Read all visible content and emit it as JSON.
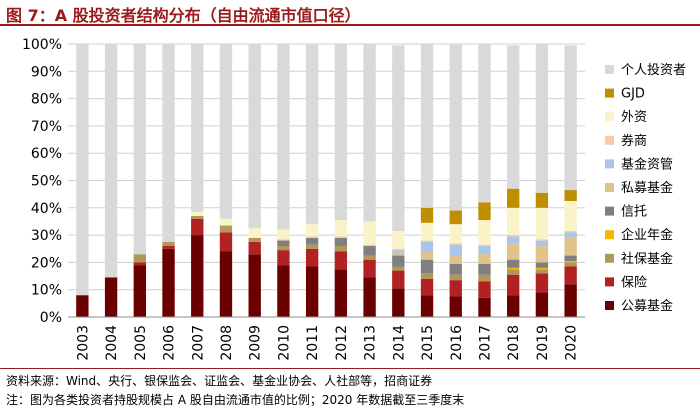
{
  "header": {
    "title": "图 7：A 股投资者结构分布（自由流通市值口径）"
  },
  "footer": {
    "source": "资料来源：Wind、央行、银保监会、证监会、基金业协会、人社部等，招商证券",
    "note": "注：图为各类投资者持股规模占 A 股自由流通市值的比例；2020 年数据截至三季度末"
  },
  "chart_data": {
    "type": "bar",
    "stacked": true,
    "title": "",
    "xlabel": "",
    "ylabel": "",
    "ylim": [
      0,
      100
    ],
    "yticks": [
      "0%",
      "10%",
      "20%",
      "30%",
      "40%",
      "50%",
      "60%",
      "70%",
      "80%",
      "90%",
      "100%"
    ],
    "categories": [
      "2003",
      "2004",
      "2005",
      "2006",
      "2007",
      "2008",
      "2009",
      "2010",
      "2011",
      "2012",
      "2013",
      "2014",
      "2015",
      "2016",
      "2017",
      "2018",
      "2019",
      "2020"
    ],
    "legend_position": "right",
    "series": [
      {
        "name": "公募基金",
        "color": "#6b0000",
        "values": [
          8,
          14.5,
          19,
          25,
          30,
          24,
          23,
          19,
          18.5,
          17.5,
          14.5,
          10.5,
          8,
          7.5,
          7,
          8,
          9,
          12
        ]
      },
      {
        "name": "保险",
        "color": "#b22222",
        "values": [
          0,
          0,
          1,
          1,
          6,
          7,
          4.5,
          5.5,
          6.5,
          6.5,
          6.5,
          6.5,
          6,
          6,
          6,
          7.5,
          7,
          6.5
        ]
      },
      {
        "name": "社保基金",
        "color": "#b0975a",
        "values": [
          0,
          0,
          3,
          1.5,
          1,
          2.5,
          1.5,
          1.5,
          1.5,
          2,
          1.5,
          1.5,
          2,
          2,
          2.5,
          2,
          1.5,
          1.5
        ]
      },
      {
        "name": "企业年金",
        "color": "#f5b800",
        "values": [
          0,
          0,
          0,
          0,
          0,
          0,
          0,
          0,
          0,
          0,
          0,
          0,
          0,
          0,
          0,
          0.5,
          0.5,
          0.5
        ]
      },
      {
        "name": "信托",
        "color": "#808080",
        "values": [
          0,
          0,
          0,
          0,
          0,
          0,
          0,
          2,
          2.5,
          3,
          3.5,
          4,
          5,
          4,
          4,
          3,
          2,
          2
        ]
      },
      {
        "name": "私募基金",
        "color": "#dfc38a",
        "values": [
          0,
          0,
          0,
          0,
          0,
          0,
          0,
          0,
          0,
          0,
          0,
          1,
          3,
          3,
          3.5,
          6,
          6,
          6.5
        ]
      },
      {
        "name": "基金资管",
        "color": "#a9c6ea",
        "values": [
          0,
          0,
          0,
          0,
          0,
          0,
          0,
          0,
          0,
          0,
          0,
          1,
          3.5,
          4,
          3,
          2.5,
          2,
          2
        ]
      },
      {
        "name": "券商",
        "color": "#f7caa9",
        "values": [
          0,
          0,
          0,
          0,
          0,
          0,
          0,
          0.5,
          0.5,
          0.5,
          0.5,
          0.5,
          0.5,
          0.5,
          0.5,
          0.5,
          0.5,
          0.5
        ]
      },
      {
        "name": "外资",
        "color": "#fbf3c8",
        "values": [
          0,
          0,
          0,
          0,
          1.5,
          2.5,
          3.5,
          3.5,
          4.5,
          6,
          8.5,
          6.5,
          6.5,
          7,
          9,
          10,
          11.5,
          11
        ]
      },
      {
        "name": "GJD",
        "color": "#bf8f00",
        "values": [
          0,
          0,
          0,
          0,
          0,
          0,
          0,
          0,
          0,
          0,
          0,
          0,
          5.5,
          5,
          6.5,
          7,
          5.5,
          4
        ]
      },
      {
        "name": "个人投资者",
        "color": "#d9d9d9",
        "values": [
          92,
          85.5,
          77,
          72.5,
          61.5,
          64,
          67.5,
          68,
          66,
          64.5,
          65,
          68,
          60,
          61,
          58,
          52.5,
          54.5,
          53
        ]
      }
    ],
    "legend_order": [
      "个人投资者",
      "GJD",
      "外资",
      "券商",
      "基金资管",
      "私募基金",
      "信托",
      "企业年金",
      "社保基金",
      "保险",
      "公募基金"
    ]
  }
}
